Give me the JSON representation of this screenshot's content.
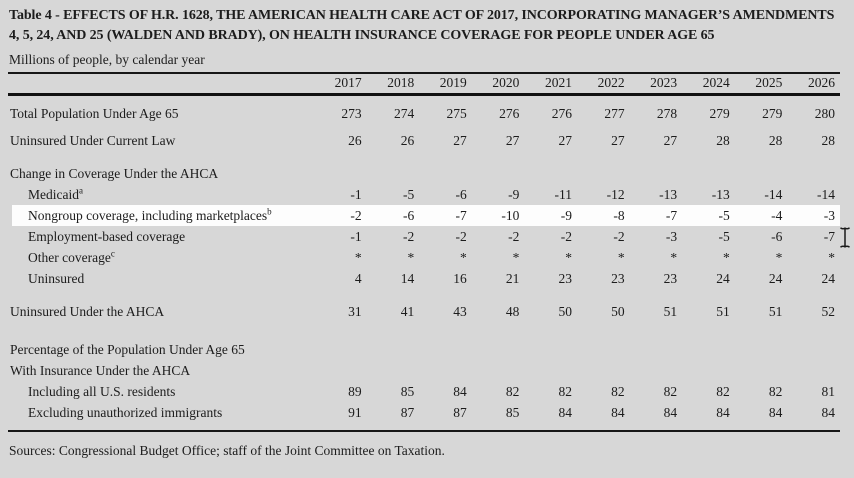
{
  "page": {
    "title": "Table 4 - EFFECTS OF H.R. 1628, THE AMERICAN HEALTH CARE ACT OF 2017, INCORPORATING MANAGER’S AMENDMENTS 4, 5, 24, AND 25 (WALDEN AND BRADY), ON HEALTH INSURANCE COVERAGE FOR PEOPLE UNDER AGE 65",
    "subtitle": "Millions of people, by calendar year",
    "sources": "Sources: Congressional Budget Office; staff of the Joint Committee on Taxation.",
    "background_color": "#d7d7d7",
    "highlight_color": "#fdfdfd",
    "rule_color": "#161616",
    "cursor": "text-ibeam"
  },
  "chart_data": {
    "type": "table",
    "title": "Table 4 - EFFECTS OF H.R. 1628, THE AMERICAN HEALTH CARE ACT OF 2017, INCORPORATING MANAGER’S AMENDMENTS 4, 5, 24, AND 25 (WALDEN AND BRADY), ON HEALTH INSURANCE COVERAGE FOR PEOPLE UNDER AGE 65",
    "unit_note": "Millions of people, by calendar year",
    "columns": [
      "2017",
      "2018",
      "2019",
      "2020",
      "2021",
      "2022",
      "2023",
      "2024",
      "2025",
      "2026"
    ],
    "rows": [
      {
        "label": "Total Population Under Age 65",
        "sup": "",
        "indent": false,
        "gap": "",
        "highlight": false,
        "values": [
          "273",
          "274",
          "275",
          "276",
          "276",
          "277",
          "278",
          "279",
          "279",
          "280"
        ]
      },
      {
        "label": "Uninsured Under Current Law",
        "sup": "",
        "indent": false,
        "gap": "sm",
        "highlight": false,
        "values": [
          "26",
          "26",
          "27",
          "27",
          "27",
          "27",
          "27",
          "28",
          "28",
          "28"
        ]
      },
      {
        "label": "Change in Coverage Under the AHCA",
        "sup": "",
        "indent": false,
        "gap": "md",
        "highlight": false,
        "values": []
      },
      {
        "label": "Medicaid",
        "sup": "a",
        "indent": true,
        "gap": "",
        "highlight": false,
        "values": [
          "-1",
          "-5",
          "-6",
          "-9",
          "-11",
          "-12",
          "-13",
          "-13",
          "-14",
          "-14"
        ]
      },
      {
        "label": "Nongroup coverage, including marketplaces",
        "sup": "b",
        "indent": true,
        "gap": "",
        "highlight": true,
        "values": [
          "-2",
          "-6",
          "-7",
          "-10",
          "-9",
          "-8",
          "-7",
          "-5",
          "-4",
          "-3"
        ]
      },
      {
        "label": "Employment-based coverage",
        "sup": "",
        "indent": true,
        "gap": "",
        "highlight": false,
        "values": [
          "-1",
          "-2",
          "-2",
          "-2",
          "-2",
          "-2",
          "-3",
          "-5",
          "-6",
          "-7"
        ]
      },
      {
        "label": "Other coverage",
        "sup": "c",
        "indent": true,
        "gap": "",
        "highlight": false,
        "values": [
          "*",
          "*",
          "*",
          "*",
          "*",
          "*",
          "*",
          "*",
          "*",
          "*"
        ]
      },
      {
        "label": "Uninsured",
        "sup": "",
        "indent": true,
        "gap": "",
        "highlight": false,
        "values": [
          "4",
          "14",
          "16",
          "21",
          "23",
          "23",
          "23",
          "24",
          "24",
          "24"
        ]
      },
      {
        "label": "Uninsured Under the AHCA",
        "sup": "",
        "indent": false,
        "gap": "md",
        "highlight": false,
        "values": [
          "31",
          "41",
          "43",
          "48",
          "50",
          "50",
          "51",
          "51",
          "51",
          "52"
        ]
      },
      {
        "label": "Percentage of the Population Under Age 65",
        "sup": "",
        "indent": false,
        "gap": "lg",
        "highlight": false,
        "values": []
      },
      {
        "label": "With Insurance Under the AHCA",
        "sup": "",
        "indent": false,
        "gap": "",
        "highlight": false,
        "values": []
      },
      {
        "label": "Including all U.S. residents",
        "sup": "",
        "indent": true,
        "gap": "",
        "highlight": false,
        "values": [
          "89",
          "85",
          "84",
          "82",
          "82",
          "82",
          "82",
          "82",
          "82",
          "81"
        ]
      },
      {
        "label": "Excluding unauthorized immigrants",
        "sup": "",
        "indent": true,
        "gap": "",
        "highlight": false,
        "values": [
          "91",
          "87",
          "87",
          "85",
          "84",
          "84",
          "84",
          "84",
          "84",
          "84"
        ]
      }
    ]
  }
}
